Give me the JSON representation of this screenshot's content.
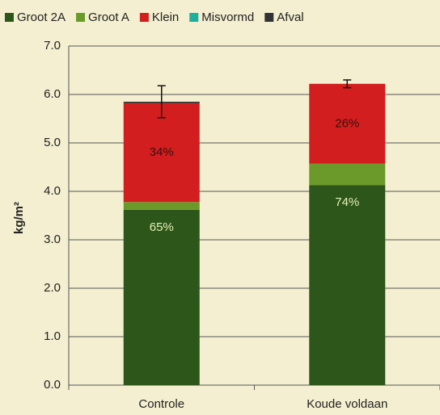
{
  "chart_data": {
    "type": "stacked-bar",
    "y_label": "kg/m²",
    "categories": [
      "Controle",
      "Koude voldaan"
    ],
    "series": [
      {
        "name": "Groot 2A",
        "color": "#2d561b",
        "values": [
          3.62,
          4.13
        ],
        "share_labels": [
          "65%",
          "74%"
        ],
        "share_label_color": "#e6efb5"
      },
      {
        "name": "Groot A",
        "color": "#6b9a2b",
        "values": [
          0.16,
          0.44
        ]
      },
      {
        "name": "Klein",
        "color": "#d21e1e",
        "values": [
          2.04,
          1.65
        ],
        "share_labels": [
          "34%",
          "26%"
        ],
        "share_label_color": "#3a1010"
      },
      {
        "name": "Misvormd",
        "color": "#1fae9d",
        "values": [
          0,
          0
        ]
      },
      {
        "name": "Afval",
        "color": "#333333",
        "values": [
          0.03,
          0
        ]
      }
    ],
    "errors": [
      0.33,
      0.08
    ],
    "ylim": [
      0,
      7
    ],
    "yticks": [
      {
        "value": 0,
        "label": "0.0"
      },
      {
        "value": 1,
        "label": "1.0"
      },
      {
        "value": 2,
        "label": "2.0"
      },
      {
        "value": 3,
        "label": "3.0"
      },
      {
        "value": 4,
        "label": "4.0"
      },
      {
        "value": 5,
        "label": "5.0"
      },
      {
        "value": 6,
        "label": "6.0"
      },
      {
        "value": 7,
        "label": "7.0"
      }
    ],
    "grid": true
  }
}
